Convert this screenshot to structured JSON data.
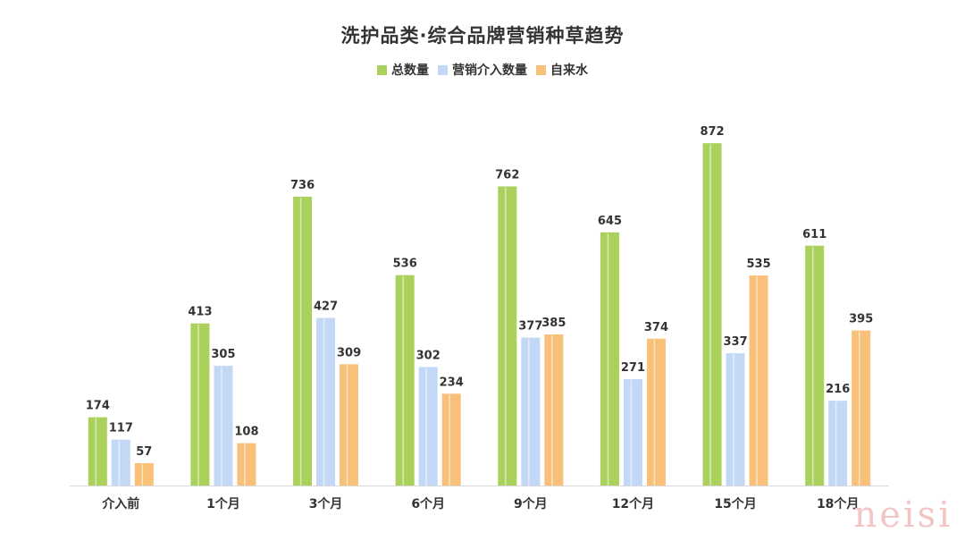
{
  "chart_data": {
    "type": "bar",
    "title": "洗护品类·综合品牌营销种草趋势",
    "categories": [
      "介入前",
      "1个月",
      "3个月",
      "6个月",
      "9个月",
      "12个月",
      "15个月",
      "18个月"
    ],
    "series": [
      {
        "name": "总数量",
        "color": "#a9d15b",
        "values": [
          174,
          413,
          736,
          536,
          762,
          645,
          872,
          611
        ]
      },
      {
        "name": "营销介入数量",
        "color": "#c3d8f6",
        "values": [
          117,
          305,
          427,
          302,
          377,
          271,
          337,
          216
        ]
      },
      {
        "name": "自来水",
        "color": "#f9c07a",
        "values": [
          57,
          108,
          309,
          234,
          385,
          374,
          535,
          395
        ]
      }
    ],
    "xlabel": "",
    "ylabel": "",
    "ylim": [
      0,
      1000
    ],
    "grid": false,
    "legend_position": "top-center"
  },
  "watermark": "neisi"
}
